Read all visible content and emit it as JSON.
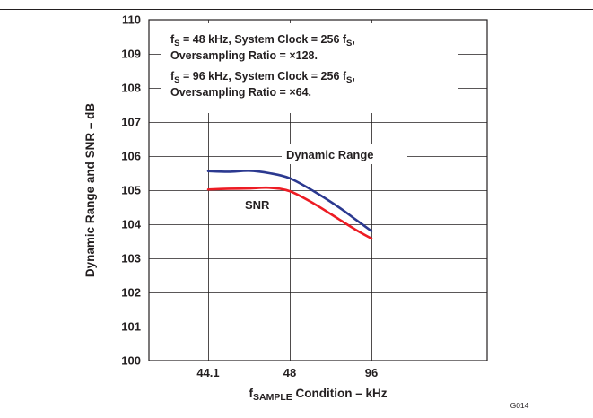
{
  "chart_data": {
    "type": "line",
    "xlabel": {
      "main": "f",
      "sub": "SAMPLE",
      "rest": " Condition – kHz"
    },
    "ylabel": "Dynamic Range and SNR – dB",
    "categories": [
      "44.1",
      "48",
      "96"
    ],
    "yticks": [
      "100",
      "101",
      "102",
      "103",
      "104",
      "105",
      "106",
      "107",
      "108",
      "109",
      "110"
    ],
    "ylim": [
      100,
      110
    ],
    "grid": true,
    "series": [
      {
        "name": "Dynamic Range",
        "color": "#2b3990",
        "points": [
          [
            0,
            105.56
          ],
          [
            0.25,
            105.54
          ],
          [
            0.5,
            105.57
          ],
          [
            0.75,
            105.5
          ],
          [
            1.0,
            105.35
          ],
          [
            1.3,
            104.96
          ],
          [
            1.6,
            104.5
          ],
          [
            1.8,
            104.15
          ],
          [
            2.0,
            103.8
          ]
        ]
      },
      {
        "name": "SNR",
        "color": "#ed1c24",
        "points": [
          [
            0,
            105.02
          ],
          [
            0.25,
            105.04
          ],
          [
            0.5,
            105.05
          ],
          [
            0.75,
            105.07
          ],
          [
            1.0,
            104.97
          ],
          [
            1.3,
            104.6
          ],
          [
            1.6,
            104.15
          ],
          [
            1.8,
            103.85
          ],
          [
            2.0,
            103.58
          ]
        ]
      }
    ],
    "annotations": {
      "line1": {
        "a": "f",
        "a_sub": "S",
        "b": " = 48 kHz, System Clock = 256 f",
        "b_sub": "S",
        "c": ","
      },
      "line2": "Oversampling Ratio = ×128.",
      "line3": {
        "a": "f",
        "a_sub": "S",
        "b": " = 96 kHz, System Clock = 256 f",
        "b_sub": "S",
        "c": ","
      },
      "line4": "Oversampling Ratio = ×64."
    },
    "figure_id": "G014"
  }
}
